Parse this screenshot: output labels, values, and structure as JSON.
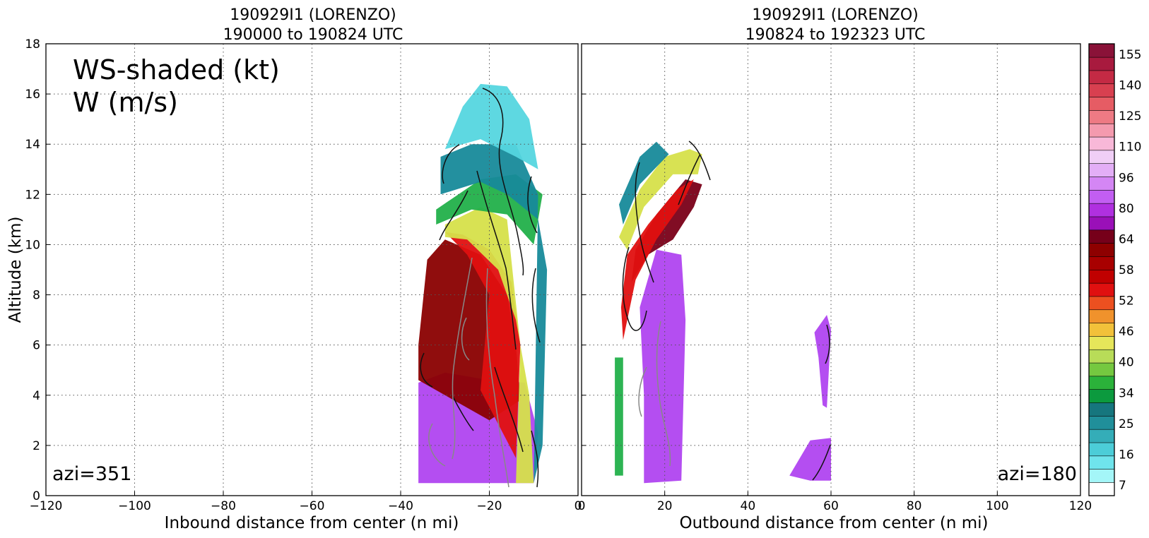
{
  "chart_data": [
    {
      "type": "contour",
      "panel": "left",
      "title_line1": "190929I1 (LORENZO)",
      "title_line2": "190000 to 190824 UTC",
      "xlabel": "Inbound distance from center (n mi)",
      "ylabel": "Altitude (km)",
      "xlim": [
        -120,
        0
      ],
      "ylim": [
        0,
        18
      ],
      "xticks": [
        -120,
        -100,
        -80,
        -60,
        -40,
        -20,
        0
      ],
      "yticks": [
        0,
        2,
        4,
        6,
        8,
        10,
        12,
        14,
        16,
        18
      ],
      "grid": true,
      "inset_line1": "WS-shaded (kt)",
      "inset_line2": "W (m/s)",
      "azimuth_label": "azi=351",
      "wind_layers": [
        {
          "kt": 90,
          "color": "#b045f0",
          "poly": [
            [
              -36,
              0.5
            ],
            [
              -10,
              0.5
            ],
            [
              -9,
              2.5
            ],
            [
              -12,
              4.5
            ],
            [
              -20,
              4.6
            ],
            [
              -30,
              4.9
            ],
            [
              -36,
              4.5
            ]
          ]
        },
        {
          "kt": 58,
          "color": "#8a0000",
          "poly": [
            [
              -36,
              4.6
            ],
            [
              -20,
              3.0
            ],
            [
              -13,
              3.8
            ],
            [
              -14,
              6
            ],
            [
              -16,
              8
            ],
            [
              -22,
              9.6
            ],
            [
              -30,
              10.2
            ],
            [
              -34,
              9.4
            ],
            [
              -36,
              6
            ]
          ]
        },
        {
          "kt": 52,
          "color": "#e01010",
          "poly": [
            [
              -22,
              4.2
            ],
            [
              -14,
              1.5
            ],
            [
              -13,
              6
            ],
            [
              -15,
              8.5
            ],
            [
              -20,
              9.8
            ],
            [
              -26,
              10.4
            ],
            [
              -30,
              10.5
            ],
            [
              -25,
              9.6
            ],
            [
              -20,
              8
            ]
          ]
        },
        {
          "kt": 40,
          "color": "#d6e04a",
          "poly": [
            [
              -30,
              10.3
            ],
            [
              -25,
              10.2
            ],
            [
              -18,
              9
            ],
            [
              -14,
              7
            ],
            [
              -11,
              4
            ],
            [
              -10,
              0.5
            ],
            [
              -14,
              0.5
            ],
            [
              -13,
              6
            ],
            [
              -16,
              11
            ],
            [
              -22,
              11.5
            ],
            [
              -30,
              10.8
            ]
          ]
        },
        {
          "kt": 34,
          "color": "#22b04a",
          "poly": [
            [
              -32,
              10.8
            ],
            [
              -24,
              11.4
            ],
            [
              -16,
              11.2
            ],
            [
              -10,
              10
            ],
            [
              -8,
              12
            ],
            [
              -14,
              12.8
            ],
            [
              -22,
              12.6
            ],
            [
              -32,
              11.4
            ]
          ]
        },
        {
          "kt": 25,
          "color": "#178a9a",
          "poly": [
            [
              -31,
              12
            ],
            [
              -22,
              12.5
            ],
            [
              -16,
              12
            ],
            [
              -9,
              11
            ],
            [
              -7,
              9
            ],
            [
              -8,
              2
            ],
            [
              -10,
              0.5
            ],
            [
              -9,
              12
            ],
            [
              -14,
              14
            ],
            [
              -24,
              14
            ],
            [
              -31,
              13.5
            ]
          ]
        },
        {
          "kt": 16,
          "color": "#55d6df",
          "poly": [
            [
              -30,
              13.8
            ],
            [
              -26,
              15.5
            ],
            [
              -22,
              16.4
            ],
            [
              -16,
              16.3
            ],
            [
              -11,
              15
            ],
            [
              -9,
              13
            ],
            [
              -14,
              13.5
            ],
            [
              -22,
              14.2
            ]
          ]
        }
      ]
    },
    {
      "type": "contour",
      "panel": "right",
      "title_line1": "190929I1 (LORENZO)",
      "title_line2": "190824 to 192323 UTC",
      "xlabel": "Outbound distance from center (n mi)",
      "xlim": [
        0,
        120
      ],
      "ylim": [
        0,
        18
      ],
      "xticks": [
        0,
        20,
        40,
        60,
        80,
        100,
        120
      ],
      "grid": true,
      "azimuth_label": "azi=180",
      "wind_layers": [
        {
          "kt": 90,
          "color": "#b045f0",
          "poly": [
            [
              15,
              0.5
            ],
            [
              24,
              0.6
            ],
            [
              25,
              7
            ],
            [
              24,
              9.6
            ],
            [
              18,
              9.8
            ],
            [
              14,
              7.5
            ],
            [
              15,
              4
            ]
          ]
        },
        {
          "kt": 64,
          "color": "#7a0018",
          "poly": [
            [
              12,
              8.5
            ],
            [
              16,
              9.6
            ],
            [
              22,
              10.2
            ],
            [
              27,
              11.5
            ],
            [
              29,
              12.4
            ],
            [
              25,
              12.6
            ],
            [
              18,
              11.2
            ],
            [
              13,
              9.8
            ]
          ]
        },
        {
          "kt": 52,
          "color": "#e01010",
          "poly": [
            [
              10,
              6.2
            ],
            [
              13,
              8.6
            ],
            [
              18,
              10.2
            ],
            [
              24,
              11.6
            ],
            [
              27,
              12.6
            ],
            [
              23,
              12.2
            ],
            [
              16,
              10.8
            ],
            [
              11,
              9.6
            ],
            [
              9.5,
              7.5
            ]
          ]
        },
        {
          "kt": 40,
          "color": "#d6e04a",
          "poly": [
            [
              9,
              10.3
            ],
            [
              14,
              12.2
            ],
            [
              20,
              13.5
            ],
            [
              26,
              13.8
            ],
            [
              29,
              13.6
            ],
            [
              28,
              12.8
            ],
            [
              22,
              12.8
            ],
            [
              15,
              11.5
            ],
            [
              11,
              9.8
            ]
          ]
        },
        {
          "kt": 34,
          "color": "#22b04a",
          "poly": [
            [
              8,
              0.8
            ],
            [
              10,
              0.8
            ],
            [
              10,
              5.5
            ],
            [
              8,
              5.5
            ]
          ]
        },
        {
          "kt": 25,
          "color": "#178a9a",
          "poly": [
            [
              9,
              11.6
            ],
            [
              14,
              13.5
            ],
            [
              18,
              14.1
            ],
            [
              21,
              13.6
            ],
            [
              14,
              12.4
            ],
            [
              10,
              10.8
            ]
          ]
        },
        {
          "kt": 90,
          "color": "#b045f0",
          "poly": [
            [
              55,
              0.6
            ],
            [
              60,
              0.6
            ],
            [
              60,
              2.3
            ],
            [
              55,
              2.2
            ],
            [
              50,
              0.8
            ]
          ]
        },
        {
          "kt": 90,
          "color": "#b045f0",
          "poly": [
            [
              56,
              6.5
            ],
            [
              59,
              7.2
            ],
            [
              60,
              6.6
            ],
            [
              59,
              3.5
            ],
            [
              58,
              3.6
            ],
            [
              57,
              5.5
            ]
          ]
        }
      ]
    }
  ],
  "colorbar": {
    "tick_labels": [
      "155",
      "140",
      "125",
      "110",
      "96",
      "80",
      "64",
      "58",
      "52",
      "46",
      "40",
      "34",
      "25",
      "16",
      "7"
    ],
    "colors": [
      "#ffffff",
      "#a4f6f8",
      "#6fe4ec",
      "#4ccdd8",
      "#34adb8",
      "#208f9a",
      "#16767e",
      "#0c9a3e",
      "#2bb23a",
      "#75c840",
      "#b8dc58",
      "#e6e65a",
      "#f2c13a",
      "#f0922c",
      "#ec5020",
      "#e01010",
      "#c00000",
      "#a80000",
      "#8e0000",
      "#76001a",
      "#9a10b8",
      "#b030e0",
      "#c25ef2",
      "#d486f4",
      "#e3aef6",
      "#f0cef6",
      "#f8b8d8",
      "#f49aae",
      "#ee7a84",
      "#e65c64",
      "#d84050",
      "#c42a44",
      "#a81a3e",
      "#8a1238"
    ]
  }
}
